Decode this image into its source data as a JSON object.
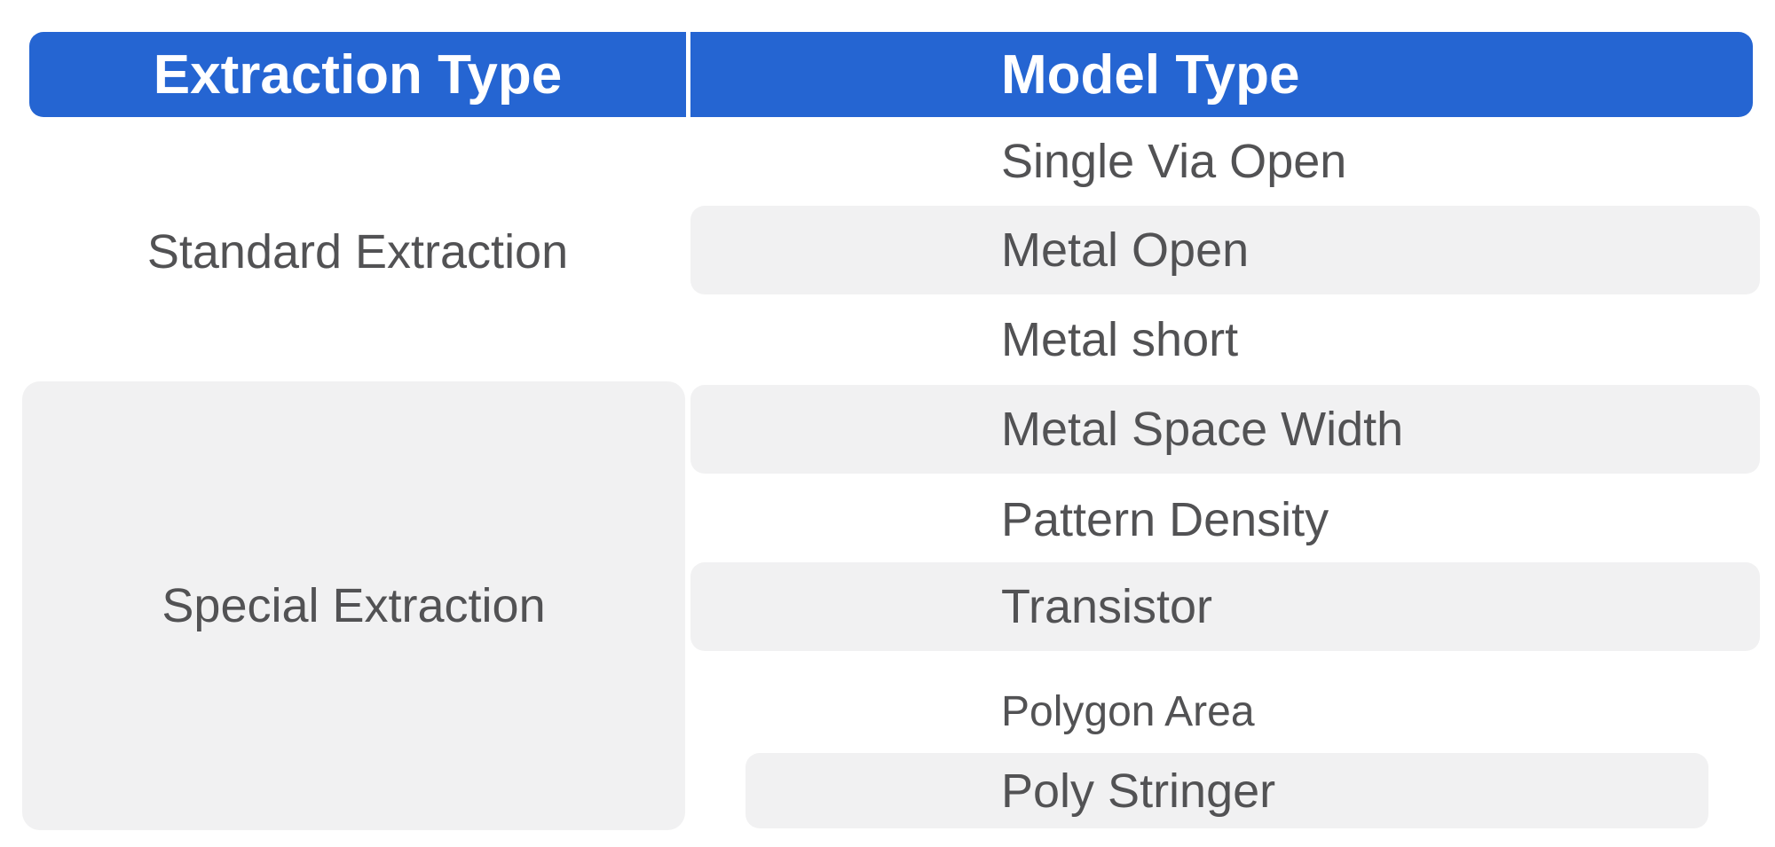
{
  "table": {
    "columns": [
      "Extraction Type",
      "Model Type"
    ],
    "groups": [
      {
        "extraction_type": "Standard Extraction",
        "models": [
          "Single Via Open",
          "Metal Open",
          "Metal short"
        ]
      },
      {
        "extraction_type": "Special Extraction",
        "models": [
          "Metal Space Width",
          "Pattern Density",
          "Transistor",
          "Polygon Area",
          "Poly Stringer"
        ]
      }
    ],
    "colors": {
      "header_bg": "#2565d2",
      "header_text": "#ffffff",
      "stripe_bg": "#f1f1f2",
      "body_text": "#525254",
      "page_bg": "#ffffff"
    }
  }
}
